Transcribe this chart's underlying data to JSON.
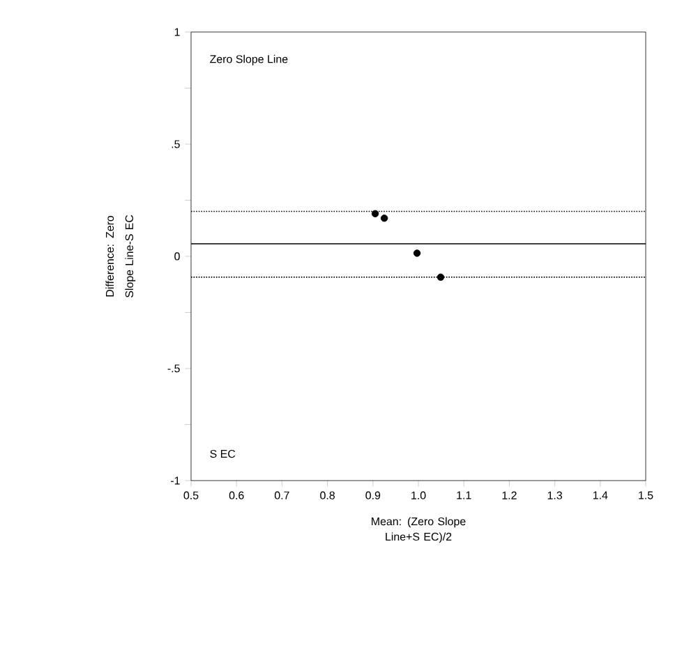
{
  "chart_data": {
    "type": "scatter",
    "xlabel": "Mean: (Zero Slope Line+S EC)/2",
    "ylabel": "Difference: Zero Slope Line-S EC",
    "annotations": [
      "Zero Slope Line",
      "S EC"
    ],
    "x": [
      0.905,
      0.925,
      0.997,
      1.049
    ],
    "series": [
      {
        "color": "#000000",
        "values": [
          0.19,
          0.17,
          0.014,
          -0.093
        ]
      }
    ],
    "marker": "circle",
    "xlim": [
      0.5,
      1.5
    ],
    "ylim": [
      -1,
      1
    ],
    "xticks": [
      0.5,
      0.6,
      0.7,
      0.8,
      0.9,
      {
        "value": 1.0,
        "label": "1.0"
      },
      1.1,
      1.2,
      1.3,
      1.4,
      1.5
    ],
    "yticks": [
      -1,
      {
        "value": -0.75,
        "label": null
      },
      {
        "value": -0.5,
        "label": "-.5"
      },
      {
        "value": -0.25,
        "label": null
      },
      0,
      {
        "value": 0.25,
        "label": null
      },
      {
        "value": 0.5,
        "label": ".5"
      },
      {
        "value": 0.75,
        "label": null
      },
      1
    ],
    "ref_lines": [
      {
        "axis": "y",
        "value": 0.056,
        "line_style": "solid"
      },
      {
        "axis": "y",
        "value": 0.2,
        "line_style": "dotted"
      },
      {
        "axis": "y",
        "value": -0.093,
        "line_style": "dotted"
      }
    ],
    "grid": false
  }
}
